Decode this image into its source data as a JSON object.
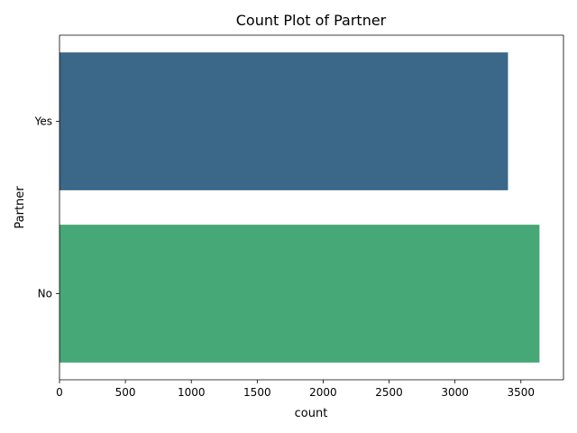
{
  "chart_data": {
    "type": "bar",
    "orientation": "horizontal",
    "title": "Count Plot of Partner",
    "xlabel": "count",
    "ylabel": "Partner",
    "categories": [
      "Yes",
      "No"
    ],
    "values": [
      3402,
      3641
    ],
    "colors": [
      "#3b6788",
      "#47a877"
    ],
    "xlim": [
      0,
      3823
    ],
    "xticks": [
      0,
      500,
      1000,
      1500,
      2000,
      2500,
      3000,
      3500
    ],
    "grid": false,
    "legend": "none"
  }
}
